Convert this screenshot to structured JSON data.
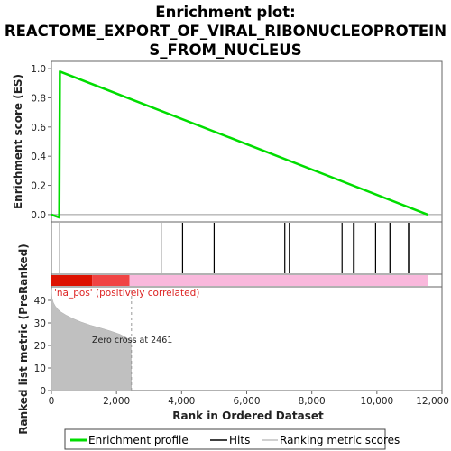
{
  "title_lines": [
    "Enrichment plot:",
    "REACTOME_EXPORT_OF_VIRAL_RIBONUCLEOPROTEIN",
    "S_FROM_NUCLEUS"
  ],
  "chart_data": {
    "type": "line",
    "xlabel": "Rank in Ordered Dataset",
    "xlim": [
      0,
      12000
    ],
    "x_ticks": [
      0,
      2000,
      4000,
      6000,
      8000,
      10000,
      12000
    ],
    "x_tick_labels": [
      "0",
      "2,000",
      "4,000",
      "6,000",
      "8,000",
      "10,000",
      "12,000"
    ],
    "es_panel": {
      "ylabel": "Enrichment score (ES)",
      "ylim": [
        -0.05,
        1.05
      ],
      "y_ticks": [
        0.0,
        0.2,
        0.4,
        0.6,
        0.8,
        1.0
      ],
      "y_tick_labels": [
        "0.0",
        "0.2",
        "0.4",
        "0.6",
        "0.8",
        "1.0"
      ],
      "series": [
        {
          "name": "Enrichment profile",
          "color": "#00dd00",
          "x": [
            0,
            240,
            260,
            11560
          ],
          "y": [
            0.0,
            -0.02,
            0.98,
            0.0
          ]
        }
      ]
    },
    "hits": {
      "name": "Hits",
      "ranks": [
        260,
        3370,
        4030,
        5000,
        7170,
        7310,
        8930,
        9280,
        9300,
        9960,
        10400,
        10430,
        10970,
        11010
      ]
    },
    "rank_bar": {
      "segments": [
        {
          "from": 0,
          "to": 1250,
          "color": "#dd1100"
        },
        {
          "from": 1250,
          "to": 2400,
          "color": "#f04444"
        },
        {
          "from": 2400,
          "to": 11560,
          "color": "#f9b8dc"
        }
      ]
    },
    "metric_panel": {
      "ylabel": "Ranked list metric (PreRanked)",
      "ylim": [
        0,
        46
      ],
      "y_ticks": [
        0,
        10,
        20,
        30,
        40
      ],
      "y_tick_labels": [
        "0",
        "10",
        "20",
        "30",
        "40"
      ],
      "series": [
        {
          "name": "Ranking metric scores",
          "color": "#c0c0c0",
          "x": [
            0,
            20,
            60,
            120,
            200,
            300,
            450,
            650,
            900,
            1200,
            1500,
            1800,
            2100,
            2300,
            2400,
            2450,
            2461
          ],
          "y": [
            45,
            41,
            39,
            37.5,
            36,
            34.8,
            33.5,
            32,
            30.5,
            29,
            27.8,
            26.5,
            25,
            23.5,
            22.5,
            21,
            0
          ]
        }
      ],
      "zero_cross_label": "Zero cross at 2461",
      "zero_cross_rank": 2461,
      "positive_label": "'na_pos' (positively correlated)"
    },
    "legend": {
      "placement": "bottom",
      "entries": [
        {
          "label": "Enrichment profile",
          "color": "#00dd00"
        },
        {
          "label": "Hits",
          "color": "#000000"
        },
        {
          "label": "Ranking metric scores",
          "color": "#c0c0c0"
        }
      ]
    }
  }
}
